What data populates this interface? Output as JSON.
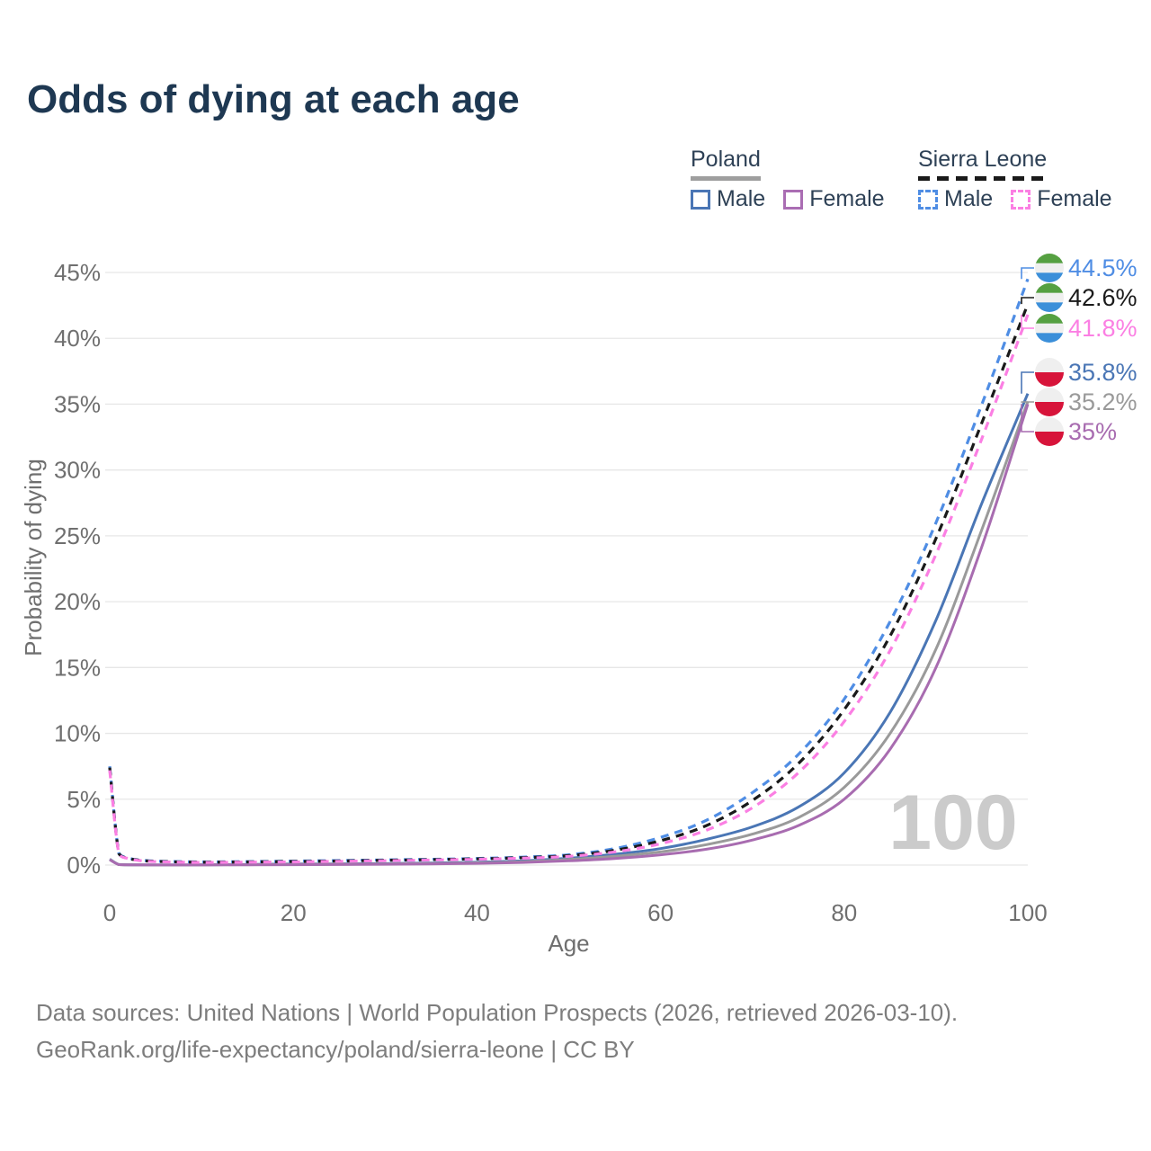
{
  "title": "Odds of dying at each age",
  "legend": {
    "poland": {
      "name": "Poland",
      "line_style": "solid",
      "underline_color": "#9e9e9e",
      "male_label": "Male",
      "female_label": "Female",
      "male_color": "#4a76b5",
      "female_color": "#aa6db3"
    },
    "sierra_leone": {
      "name": "Sierra Leone",
      "line_style": "dashed",
      "underline_color": "#1a1a1a",
      "male_label": "Male",
      "female_label": "Female",
      "male_color": "#4f8de4",
      "female_color": "#fb7fe3"
    }
  },
  "flags": {
    "sierra_leone": [
      "#55a041",
      "#efefef",
      "#3b8fd9"
    ],
    "poland": [
      "#efefef",
      "#d7143a"
    ]
  },
  "chart_data": {
    "type": "line",
    "title": "Odds of dying at each age",
    "xlabel": "Age",
    "ylabel": "Probability of dying",
    "xlim": [
      0,
      100
    ],
    "ylim_percent": [
      0,
      45
    ],
    "x_ticks": [
      0,
      20,
      40,
      60,
      80,
      100
    ],
    "x_tick_labels": [
      "0",
      "20",
      "40",
      "60",
      "80",
      "100"
    ],
    "y_ticks_percent": [
      0,
      5,
      10,
      15,
      20,
      25,
      30,
      35,
      40,
      45
    ],
    "y_tick_labels": [
      "0%",
      "5%",
      "10%",
      "15%",
      "20%",
      "25%",
      "30%",
      "35%",
      "40%",
      "45%"
    ],
    "grid": "horizontal",
    "legend_position": "top-right",
    "watermark": "100",
    "series": [
      {
        "id": "pl_male",
        "name": "Poland Male",
        "country": "Poland",
        "sex": "Male",
        "style": "solid",
        "color": "#4a76b5",
        "end_value_percent": 35.8,
        "points_age_percent": [
          [
            0,
            0.45
          ],
          [
            1,
            0.04
          ],
          [
            2,
            0.02
          ],
          [
            5,
            0.01
          ],
          [
            10,
            0.012
          ],
          [
            15,
            0.04
          ],
          [
            20,
            0.08
          ],
          [
            25,
            0.09
          ],
          [
            30,
            0.11
          ],
          [
            35,
            0.15
          ],
          [
            40,
            0.21
          ],
          [
            45,
            0.32
          ],
          [
            50,
            0.52
          ],
          [
            55,
            0.82
          ],
          [
            60,
            1.25
          ],
          [
            65,
            1.95
          ],
          [
            70,
            2.9
          ],
          [
            75,
            4.4
          ],
          [
            80,
            7.0
          ],
          [
            85,
            11.6
          ],
          [
            90,
            18.6
          ],
          [
            95,
            27.5
          ],
          [
            100,
            35.8
          ]
        ]
      },
      {
        "id": "pl_both",
        "name": "Poland Both sexes",
        "country": "Poland",
        "sex": "Both",
        "style": "solid",
        "color": "#9a9a9a",
        "end_value_percent": 35.2,
        "points_age_percent": [
          [
            0,
            0.43
          ],
          [
            1,
            0.037
          ],
          [
            2,
            0.018
          ],
          [
            5,
            0.01
          ],
          [
            10,
            0.011
          ],
          [
            15,
            0.03
          ],
          [
            20,
            0.06
          ],
          [
            25,
            0.07
          ],
          [
            30,
            0.09
          ],
          [
            35,
            0.12
          ],
          [
            40,
            0.17
          ],
          [
            45,
            0.26
          ],
          [
            50,
            0.42
          ],
          [
            55,
            0.66
          ],
          [
            60,
            1.0
          ],
          [
            65,
            1.55
          ],
          [
            70,
            2.35
          ],
          [
            75,
            3.6
          ],
          [
            80,
            5.9
          ],
          [
            85,
            10.0
          ],
          [
            90,
            16.4
          ],
          [
            95,
            25.5
          ],
          [
            100,
            35.2
          ]
        ]
      },
      {
        "id": "pl_female",
        "name": "Poland Female",
        "country": "Poland",
        "sex": "Female",
        "style": "solid",
        "color": "#a86cb0",
        "end_value_percent": 35.0,
        "points_age_percent": [
          [
            0,
            0.4
          ],
          [
            1,
            0.033
          ],
          [
            2,
            0.016
          ],
          [
            5,
            0.009
          ],
          [
            10,
            0.01
          ],
          [
            15,
            0.02
          ],
          [
            20,
            0.03
          ],
          [
            25,
            0.04
          ],
          [
            30,
            0.06
          ],
          [
            35,
            0.09
          ],
          [
            40,
            0.13
          ],
          [
            45,
            0.2
          ],
          [
            50,
            0.32
          ],
          [
            55,
            0.5
          ],
          [
            60,
            0.78
          ],
          [
            65,
            1.2
          ],
          [
            70,
            1.9
          ],
          [
            75,
            3.0
          ],
          [
            80,
            5.0
          ],
          [
            85,
            8.8
          ],
          [
            90,
            15.0
          ],
          [
            95,
            24.2
          ],
          [
            100,
            35.0
          ]
        ]
      },
      {
        "id": "sl_male",
        "name": "Sierra Leone Male",
        "country": "Sierra Leone",
        "sex": "Male",
        "style": "dashed",
        "color": "#4f8de4",
        "end_value_percent": 44.5,
        "points_age_percent": [
          [
            0,
            7.5
          ],
          [
            1,
            0.9
          ],
          [
            2,
            0.55
          ],
          [
            3,
            0.4
          ],
          [
            5,
            0.3
          ],
          [
            10,
            0.24
          ],
          [
            15,
            0.26
          ],
          [
            20,
            0.3
          ],
          [
            25,
            0.34
          ],
          [
            30,
            0.39
          ],
          [
            35,
            0.44
          ],
          [
            40,
            0.5
          ],
          [
            45,
            0.6
          ],
          [
            50,
            0.78
          ],
          [
            55,
            1.25
          ],
          [
            60,
            2.1
          ],
          [
            65,
            3.4
          ],
          [
            70,
            5.5
          ],
          [
            75,
            8.4
          ],
          [
            80,
            12.6
          ],
          [
            85,
            18.5
          ],
          [
            90,
            26.0
          ],
          [
            95,
            35.0
          ],
          [
            100,
            44.5
          ]
        ]
      },
      {
        "id": "sl_both",
        "name": "Sierra Leone Both sexes",
        "country": "Sierra Leone",
        "sex": "Both",
        "style": "dashed",
        "color": "#1a1a1a",
        "end_value_percent": 42.6,
        "points_age_percent": [
          [
            0,
            7.4
          ],
          [
            1,
            0.87
          ],
          [
            2,
            0.52
          ],
          [
            3,
            0.38
          ],
          [
            5,
            0.28
          ],
          [
            10,
            0.22
          ],
          [
            15,
            0.24
          ],
          [
            20,
            0.27
          ],
          [
            25,
            0.31
          ],
          [
            30,
            0.36
          ],
          [
            35,
            0.41
          ],
          [
            40,
            0.47
          ],
          [
            45,
            0.56
          ],
          [
            50,
            0.72
          ],
          [
            55,
            1.12
          ],
          [
            60,
            1.85
          ],
          [
            65,
            3.0
          ],
          [
            70,
            4.9
          ],
          [
            75,
            7.7
          ],
          [
            80,
            11.8
          ],
          [
            85,
            17.4
          ],
          [
            90,
            24.8
          ],
          [
            95,
            33.6
          ],
          [
            100,
            42.6
          ]
        ]
      },
      {
        "id": "sl_female",
        "name": "Sierra Leone Female",
        "country": "Sierra Leone",
        "sex": "Female",
        "style": "dashed",
        "color": "#fb7fe3",
        "end_value_percent": 41.8,
        "points_age_percent": [
          [
            0,
            7.2
          ],
          [
            1,
            0.84
          ],
          [
            2,
            0.5
          ],
          [
            3,
            0.36
          ],
          [
            5,
            0.26
          ],
          [
            10,
            0.2
          ],
          [
            15,
            0.22
          ],
          [
            20,
            0.24
          ],
          [
            25,
            0.28
          ],
          [
            30,
            0.33
          ],
          [
            35,
            0.38
          ],
          [
            40,
            0.44
          ],
          [
            45,
            0.52
          ],
          [
            50,
            0.66
          ],
          [
            55,
            1.0
          ],
          [
            60,
            1.62
          ],
          [
            65,
            2.65
          ],
          [
            70,
            4.35
          ],
          [
            75,
            7.0
          ],
          [
            80,
            10.9
          ],
          [
            85,
            16.3
          ],
          [
            90,
            23.6
          ],
          [
            95,
            32.4
          ],
          [
            100,
            41.8
          ]
        ]
      }
    ],
    "end_labels": [
      {
        "text": "44.5%",
        "color": "#4f8de4",
        "flag": "sierra_leone",
        "series": "sl_male"
      },
      {
        "text": "42.6%",
        "color": "#1a1a1a",
        "flag": "sierra_leone",
        "series": "sl_both"
      },
      {
        "text": "41.8%",
        "color": "#fb7fe3",
        "flag": "sierra_leone",
        "series": "sl_female"
      },
      {
        "text": "35.8%",
        "color": "#4a76b5",
        "flag": "poland",
        "series": "pl_male"
      },
      {
        "text": "35.2%",
        "color": "#9a9a9a",
        "flag": "poland",
        "series": "pl_both"
      },
      {
        "text": "35%",
        "color": "#a86cb0",
        "flag": "poland",
        "series": "pl_female"
      }
    ]
  },
  "footer": {
    "line1": "Data sources: United Nations | World Population Prospects (2026, retrieved 2026-03-10).",
    "line2": "GeoRank.org/life-expectancy/poland/sierra-leone | CC BY"
  }
}
